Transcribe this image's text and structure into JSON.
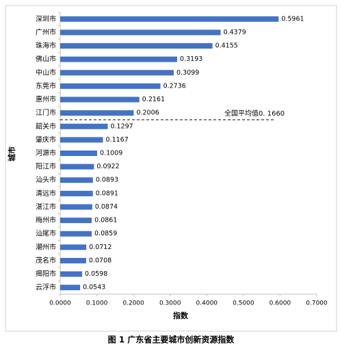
{
  "chart_data": {
    "type": "bar",
    "orientation": "horizontal",
    "title": "图 1 广东省主要城市创新资源指数",
    "x_label": "指数",
    "y_label": "城市",
    "categories": [
      "深圳市",
      "广州市",
      "珠海市",
      "佛山市",
      "中山市",
      "东莞市",
      "惠州市",
      "江门市",
      "韶关市",
      "肇庆市",
      "河源市",
      "阳江市",
      "汕头市",
      "清远市",
      "湛江市",
      "梅州市",
      "汕尾市",
      "潮州市",
      "茂名市",
      "揭阳市",
      "云浮市"
    ],
    "values": [
      0.5961,
      0.4379,
      0.4155,
      0.3193,
      0.3099,
      0.2736,
      0.2161,
      0.2006,
      0.1297,
      0.1167,
      0.1009,
      0.0922,
      0.0893,
      0.0891,
      0.0874,
      0.0861,
      0.0859,
      0.0712,
      0.0708,
      0.0598,
      0.0543
    ],
    "color": "#4472c4",
    "xlim": [
      0,
      0.7
    ],
    "xticks": [
      {
        "value": 0,
        "label": "0.0000"
      },
      {
        "value": 0.1,
        "label": "0.1000"
      },
      {
        "value": 0.2,
        "label": "0.2000"
      },
      {
        "value": 0.3,
        "label": "0.3000"
      },
      {
        "value": 0.4,
        "label": "0.4000"
      },
      {
        "value": 0.5,
        "label": "0.5000"
      },
      {
        "value": 0.6,
        "label": "0.6000"
      },
      {
        "value": 0.7,
        "label": "0.7000"
      }
    ],
    "average": {
      "value": 0.166,
      "label": "全国平均值0. 1660"
    }
  }
}
